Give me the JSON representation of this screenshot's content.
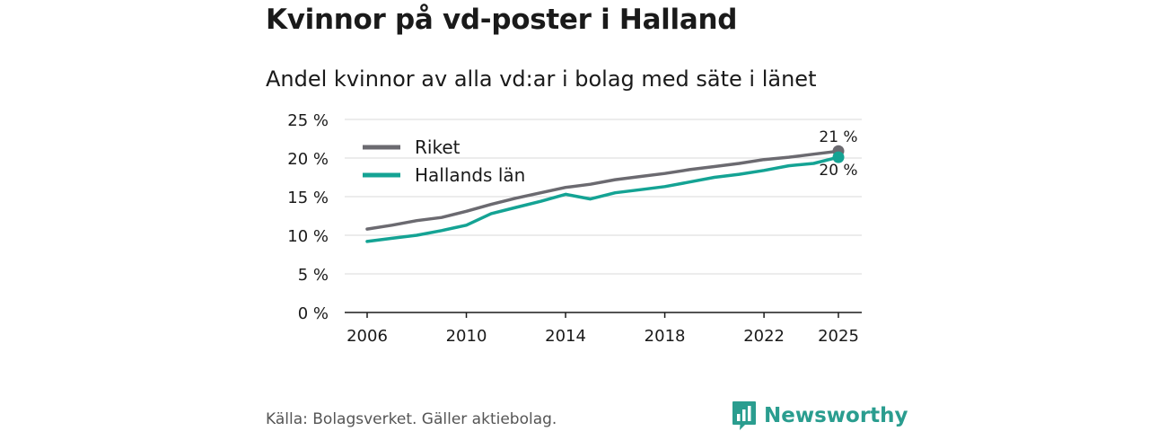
{
  "chart_data": {
    "type": "line",
    "title": "Kvinnor på vd-poster i Halland",
    "subtitle": "Andel kvinnor av alla vd:ar i bolag med säte i länet",
    "xlabel": "",
    "ylabel": "",
    "x": [
      2006,
      2007,
      2008,
      2009,
      2010,
      2011,
      2012,
      2013,
      2014,
      2015,
      2016,
      2017,
      2018,
      2019,
      2020,
      2021,
      2022,
      2023,
      2024,
      2025
    ],
    "x_ticks": [
      "2006",
      "2010",
      "2014",
      "2018",
      "2022",
      "2025"
    ],
    "y_ticks": [
      "0 %",
      "5 %",
      "10 %",
      "15 %",
      "20 %",
      "25 %"
    ],
    "ylim": [
      0,
      25
    ],
    "grid": true,
    "legend_position": "top-left",
    "series": [
      {
        "name": "Riket",
        "color": "#6b6a70",
        "end_label": "21 %",
        "values": [
          10.8,
          11.3,
          11.9,
          12.3,
          13.1,
          14.0,
          14.8,
          15.5,
          16.2,
          16.6,
          17.2,
          17.6,
          18.0,
          18.5,
          18.9,
          19.3,
          19.8,
          20.1,
          20.5,
          20.9
        ]
      },
      {
        "name": "Hallands län",
        "color": "#14a394",
        "end_label": "20 %",
        "values": [
          9.2,
          9.6,
          10.0,
          10.6,
          11.3,
          12.8,
          13.6,
          14.4,
          15.3,
          14.7,
          15.5,
          15.9,
          16.3,
          16.9,
          17.5,
          17.9,
          18.4,
          19.0,
          19.3,
          20.1
        ]
      }
    ]
  },
  "footer": {
    "source": "Källa: Bolagsverket. Gäller aktiebolag.",
    "brand": "Newsworthy",
    "brand_color": "#2a9d8f"
  }
}
